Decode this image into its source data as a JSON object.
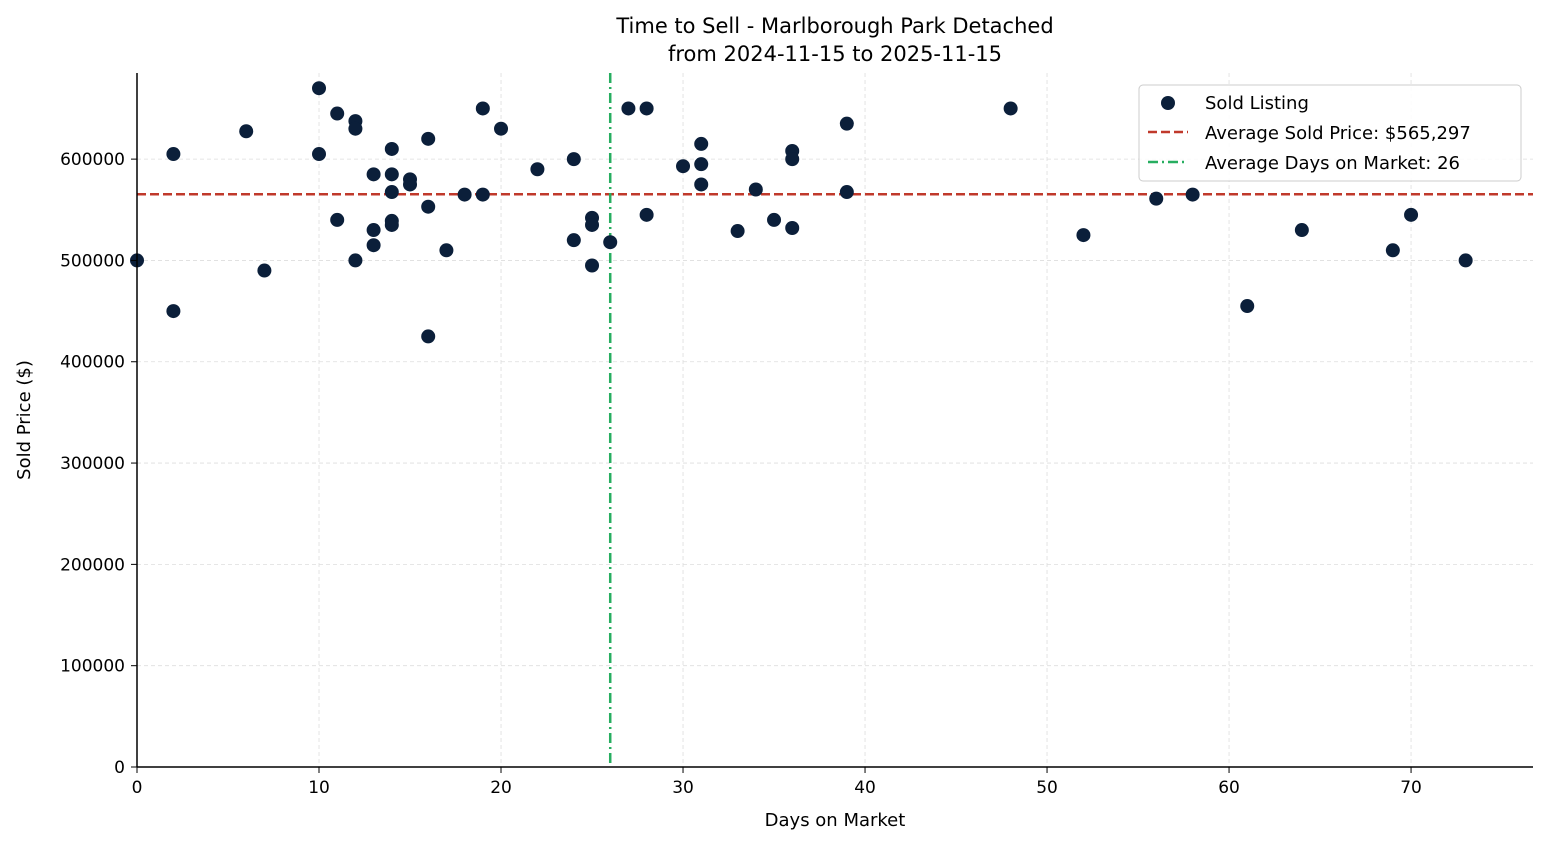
{
  "chart_data": {
    "type": "scatter",
    "title": "Time to Sell - Marlborough Park Detached",
    "subtitle": "from 2024-11-15 to 2025-11-15",
    "xlabel": "Days on Market",
    "ylabel": "Sold Price ($)",
    "xlim": [
      0,
      76.7
    ],
    "ylim": [
      0,
      685000
    ],
    "xticks": [
      0,
      10,
      20,
      30,
      40,
      50,
      60,
      70
    ],
    "yticks": [
      0,
      100000,
      200000,
      300000,
      400000,
      500000,
      600000
    ],
    "grid": true,
    "legend_position": "top-right",
    "colors": {
      "points": "#0b1f3a",
      "avg_price": "#c0392b",
      "avg_days": "#27ae60"
    },
    "series": [
      {
        "name": "Sold Listing",
        "points": [
          [
            0,
            500000
          ],
          [
            2,
            605000
          ],
          [
            2,
            450000
          ],
          [
            6,
            627500
          ],
          [
            7,
            490000
          ],
          [
            10,
            670000
          ],
          [
            10,
            605000
          ],
          [
            11,
            645000
          ],
          [
            11,
            540000
          ],
          [
            12,
            637500
          ],
          [
            12,
            630000
          ],
          [
            12,
            500000
          ],
          [
            13,
            585000
          ],
          [
            13,
            530000
          ],
          [
            13,
            515000
          ],
          [
            14,
            610000
          ],
          [
            14,
            585000
          ],
          [
            14,
            567500
          ],
          [
            14,
            539000
          ],
          [
            14,
            535000
          ],
          [
            15,
            580000
          ],
          [
            15,
            575000
          ],
          [
            16,
            620000
          ],
          [
            16,
            553000
          ],
          [
            16,
            425000
          ],
          [
            17,
            510000
          ],
          [
            18,
            565000
          ],
          [
            19,
            650000
          ],
          [
            19,
            565000
          ],
          [
            20,
            630000
          ],
          [
            22,
            590000
          ],
          [
            24,
            600000
          ],
          [
            24,
            520000
          ],
          [
            25,
            542000
          ],
          [
            25,
            535000
          ],
          [
            25,
            495000
          ],
          [
            26,
            518000
          ],
          [
            27,
            650000
          ],
          [
            28,
            650000
          ],
          [
            28,
            545000
          ],
          [
            30,
            593000
          ],
          [
            31,
            615000
          ],
          [
            31,
            595000
          ],
          [
            31,
            575000
          ],
          [
            33,
            529000
          ],
          [
            34,
            570000
          ],
          [
            35,
            540000
          ],
          [
            36,
            608000
          ],
          [
            36,
            600000
          ],
          [
            36,
            532000
          ],
          [
            39,
            635000
          ],
          [
            39,
            567500
          ],
          [
            48,
            650000
          ],
          [
            52,
            525000
          ],
          [
            56,
            561000
          ],
          [
            58,
            565000
          ],
          [
            61,
            455000
          ],
          [
            64,
            530000
          ],
          [
            69,
            510000
          ],
          [
            70,
            545000
          ],
          [
            73,
            500000
          ]
        ]
      }
    ],
    "reference_lines": [
      {
        "name": "Average Sold Price: $565,297",
        "orientation": "horizontal",
        "value": 565297,
        "style": "dashed"
      },
      {
        "name": "Average Days on Market: 26",
        "orientation": "vertical",
        "value": 26,
        "style": "dashdot"
      }
    ]
  }
}
